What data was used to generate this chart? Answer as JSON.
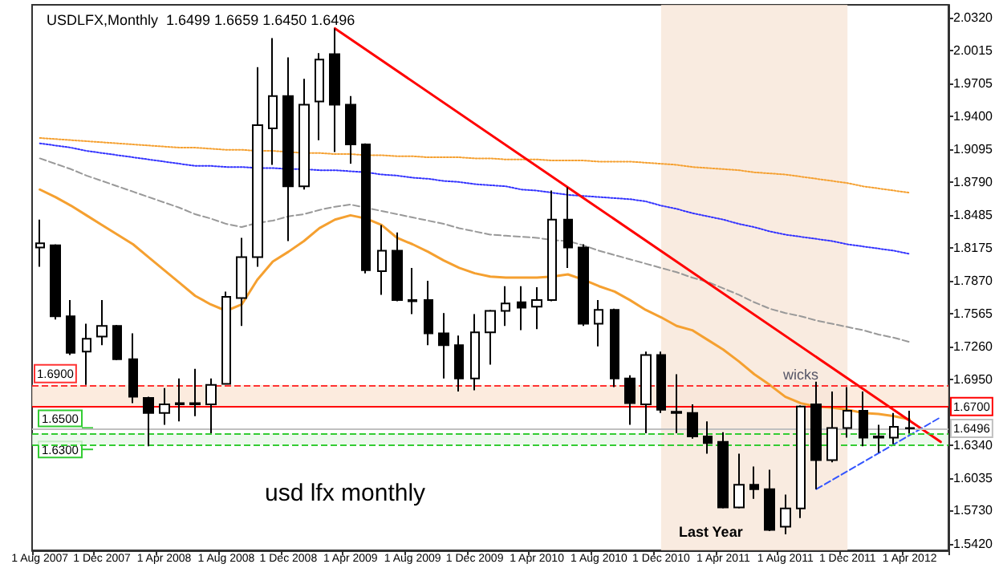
{
  "chart_data": {
    "type": "candlestick",
    "title": "USDLFX,Monthly  1.6499 1.6659 1.6450 1.6496",
    "categories": [
      "1 Aug 2007",
      null,
      null,
      null,
      "1 Dec 2007",
      null,
      null,
      null,
      "1 Apr 2008",
      null,
      null,
      null,
      "1 Aug 2008",
      null,
      null,
      null,
      "1 Dec 2008",
      null,
      null,
      null,
      "1 Apr 2009",
      null,
      null,
      null,
      "1 Aug 2009",
      null,
      null,
      null,
      "1 Dec 2009",
      null,
      null,
      null,
      "1 Apr 2010",
      null,
      null,
      null,
      "1 Aug 2010",
      null,
      null,
      null,
      "1 Dec 2010",
      null,
      null,
      null,
      "1 Apr 2011",
      null,
      null,
      null,
      "1 Aug 2011",
      null,
      null,
      null,
      "1 Dec 2011",
      null,
      null,
      null,
      "1 Apr 2012",
      null,
      null
    ],
    "series": [
      {
        "type": "candlestick",
        "color": "#000000",
        "ohlc": [
          [
            1.818,
            1.844,
            1.8,
            1.822
          ],
          [
            1.82,
            1.821,
            1.751,
            1.754
          ],
          [
            1.754,
            1.769,
            1.718,
            1.72
          ],
          [
            1.721,
            1.747,
            1.69,
            1.733
          ],
          [
            1.735,
            1.769,
            1.727,
            1.745
          ],
          [
            1.745,
            1.746,
            1.713,
            1.714
          ],
          [
            1.714,
            1.738,
            1.673,
            1.679
          ],
          [
            1.678,
            1.679,
            1.633,
            1.664
          ],
          [
            1.664,
            1.687,
            1.653,
            1.672
          ],
          [
            1.673,
            1.696,
            1.656,
            1.672
          ],
          [
            1.672,
            1.705,
            1.661,
            1.673
          ],
          [
            1.672,
            1.696,
            1.645,
            1.69
          ],
          [
            1.691,
            1.777,
            1.691,
            1.772
          ],
          [
            1.771,
            1.827,
            1.745,
            1.809
          ],
          [
            1.809,
            1.986,
            1.8,
            1.932
          ],
          [
            1.929,
            2.013,
            1.895,
            1.959
          ],
          [
            1.959,
            1.995,
            1.824,
            1.875
          ],
          [
            1.875,
            1.975,
            1.872,
            1.951
          ],
          [
            1.954,
            1.999,
            1.918,
            1.993
          ],
          [
            1.998,
            2.022,
            1.907,
            1.951
          ],
          [
            1.951,
            1.959,
            1.896,
            1.914
          ],
          [
            1.914,
            1.915,
            1.794,
            1.797
          ],
          [
            1.796,
            1.839,
            1.774,
            1.815
          ],
          [
            1.815,
            1.832,
            1.768,
            1.769
          ],
          [
            1.769,
            1.799,
            1.756,
            1.768
          ],
          [
            1.769,
            1.787,
            1.727,
            1.738
          ],
          [
            1.738,
            1.757,
            1.696,
            1.727
          ],
          [
            1.727,
            1.736,
            1.684,
            1.696
          ],
          [
            1.696,
            1.756,
            1.685,
            1.739
          ],
          [
            1.739,
            1.76,
            1.709,
            1.759
          ],
          [
            1.759,
            1.782,
            1.745,
            1.766
          ],
          [
            1.767,
            1.782,
            1.741,
            1.762
          ],
          [
            1.763,
            1.781,
            1.742,
            1.769
          ],
          [
            1.769,
            1.871,
            1.768,
            1.844
          ],
          [
            1.844,
            1.874,
            1.799,
            1.818
          ],
          [
            1.818,
            1.821,
            1.745,
            1.747
          ],
          [
            1.747,
            1.769,
            1.726,
            1.76
          ],
          [
            1.76,
            1.761,
            1.688,
            1.696
          ],
          [
            1.696,
            1.699,
            1.653,
            1.673
          ],
          [
            1.672,
            1.721,
            1.645,
            1.718
          ],
          [
            1.718,
            1.721,
            1.664,
            1.667
          ],
          [
            1.665,
            1.7,
            1.645,
            1.664
          ],
          [
            1.664,
            1.672,
            1.64,
            1.642
          ],
          [
            1.642,
            1.656,
            1.626,
            1.636
          ],
          [
            1.637,
            1.646,
            1.575,
            1.576
          ],
          [
            1.576,
            1.626,
            1.575,
            1.597
          ],
          [
            1.597,
            1.614,
            1.584,
            1.593
          ],
          [
            1.593,
            1.611,
            1.554,
            1.555
          ],
          [
            1.558,
            1.588,
            1.551,
            1.575
          ],
          [
            1.575,
            1.671,
            1.566,
            1.67
          ],
          [
            1.672,
            1.693,
            1.593,
            1.62
          ],
          [
            1.62,
            1.684,
            1.618,
            1.65
          ],
          [
            1.65,
            1.688,
            1.641,
            1.666
          ],
          [
            1.666,
            1.684,
            1.633,
            1.641
          ],
          [
            1.641,
            1.653,
            1.627,
            1.642
          ],
          [
            1.641,
            1.664,
            1.635,
            1.651
          ],
          [
            1.6499,
            1.6659,
            1.645,
            1.6496
          ],
          null,
          null
        ]
      },
      {
        "type": "line",
        "color": "#f5a030",
        "line_style": "solid",
        "values": [
          1.872,
          1.865,
          1.857,
          1.848,
          1.839,
          1.83,
          1.821,
          1.809,
          1.797,
          1.785,
          1.773,
          1.765,
          1.759,
          1.765,
          1.788,
          1.805,
          1.814,
          1.824,
          1.836,
          1.844,
          1.848,
          1.845,
          1.839,
          1.827,
          1.821,
          1.814,
          1.806,
          1.799,
          1.794,
          1.791,
          1.79,
          1.79,
          1.79,
          1.791,
          1.793,
          1.788,
          1.782,
          1.777,
          1.769,
          1.76,
          1.753,
          1.745,
          1.741,
          1.732,
          1.723,
          1.712,
          1.7,
          1.69,
          1.679,
          1.673,
          1.67,
          1.669,
          1.667,
          1.664,
          1.663,
          1.661,
          1.658,
          null,
          null
        ]
      },
      {
        "type": "line",
        "color": "#f5a030",
        "line_style": "dotted",
        "values": [
          1.92,
          1.919,
          1.918,
          1.917,
          1.916,
          1.915,
          1.914,
          1.913,
          1.912,
          1.911,
          1.911,
          1.91,
          1.909,
          1.909,
          1.908,
          1.908,
          1.907,
          1.906,
          1.906,
          1.905,
          1.905,
          1.904,
          1.904,
          1.903,
          1.903,
          1.902,
          1.902,
          1.902,
          1.901,
          1.901,
          1.9,
          1.9,
          1.9,
          1.899,
          1.899,
          1.899,
          1.898,
          1.898,
          1.898,
          1.897,
          1.896,
          1.895,
          1.893,
          1.892,
          1.891,
          1.89,
          1.888,
          1.887,
          1.886,
          1.884,
          1.882,
          1.88,
          1.878,
          1.875,
          1.873,
          1.871,
          1.869,
          null,
          null
        ]
      },
      {
        "type": "line",
        "color": "#3333ff",
        "line_style": "dotted",
        "values": [
          1.915,
          1.913,
          1.911,
          1.908,
          1.906,
          1.904,
          1.902,
          1.9,
          1.898,
          1.896,
          1.894,
          1.894,
          1.893,
          1.893,
          1.892,
          1.892,
          1.891,
          1.891,
          1.89,
          1.89,
          1.889,
          1.888,
          1.886,
          1.885,
          1.883,
          1.882,
          1.88,
          1.879,
          1.877,
          1.876,
          1.875,
          1.872,
          1.871,
          1.869,
          1.867,
          1.866,
          1.865,
          1.864,
          1.863,
          1.861,
          1.857,
          1.854,
          1.85,
          1.847,
          1.844,
          1.84,
          1.837,
          1.833,
          1.83,
          1.828,
          1.826,
          1.824,
          1.821,
          1.819,
          1.817,
          1.815,
          1.812,
          null,
          null
        ]
      },
      {
        "type": "line",
        "color": "#999999",
        "line_style": "dashed",
        "values": [
          1.901,
          1.896,
          1.891,
          1.885,
          1.88,
          1.875,
          1.87,
          1.865,
          1.86,
          1.855,
          1.849,
          1.845,
          1.84,
          1.837,
          1.841,
          1.843,
          1.847,
          1.849,
          1.853,
          1.856,
          1.858,
          1.855,
          1.852,
          1.849,
          1.846,
          1.843,
          1.84,
          1.836,
          1.833,
          1.83,
          1.829,
          1.828,
          1.827,
          1.825,
          1.824,
          1.82,
          1.815,
          1.811,
          1.807,
          1.803,
          1.799,
          1.795,
          1.79,
          1.786,
          1.78,
          1.774,
          1.767,
          1.761,
          1.757,
          1.754,
          1.75,
          1.747,
          1.744,
          1.741,
          1.737,
          1.734,
          1.73,
          null,
          null
        ]
      },
      {
        "type": "line",
        "color": "#ff0000",
        "line_style": "solid",
        "values": [
          null,
          null,
          null,
          null,
          null,
          null,
          null,
          null,
          null,
          null,
          null,
          null,
          null,
          null,
          null,
          null,
          null,
          null,
          null,
          2.022,
          null,
          null,
          null,
          null,
          null,
          null,
          null,
          null,
          null,
          null,
          null,
          null,
          null,
          null,
          null,
          null,
          null,
          null,
          null,
          null,
          null,
          null,
          null,
          null,
          null,
          null,
          null,
          null,
          null,
          null,
          null,
          null,
          null,
          null,
          null,
          null,
          null,
          null,
          1.637
        ]
      },
      {
        "type": "line",
        "color": "#3355ff",
        "line_style": "dashed",
        "values": [
          null,
          null,
          null,
          null,
          null,
          null,
          null,
          null,
          null,
          null,
          null,
          null,
          null,
          null,
          null,
          null,
          null,
          null,
          null,
          null,
          null,
          null,
          null,
          null,
          null,
          null,
          null,
          null,
          null,
          null,
          null,
          null,
          null,
          null,
          null,
          null,
          null,
          null,
          null,
          null,
          null,
          null,
          null,
          null,
          null,
          null,
          null,
          null,
          null,
          null,
          1.593,
          null,
          null,
          null,
          null,
          null,
          null,
          null,
          1.66
        ]
      }
    ],
    "ylim": [
      1.536,
      2.044
    ],
    "yticks": [
      {
        "value": 1.542,
        "label": "1.5420"
      },
      {
        "value": 1.573,
        "label": "1.5730"
      },
      1.6035,
      {
        "value": 1.634,
        "label": "1.6340"
      },
      {
        "value": 1.695,
        "label": "1.6950"
      },
      {
        "value": 1.726,
        "label": "1.7260"
      },
      1.7565,
      {
        "value": 1.787,
        "label": "1.7870"
      },
      1.8175,
      1.8485,
      {
        "value": 1.879,
        "label": "1.8790"
      },
      1.9095,
      {
        "value": 1.94,
        "label": "1.9400"
      },
      1.9705,
      2.0015,
      {
        "value": 2.032,
        "label": "2.0320"
      }
    ],
    "ref_lines": [
      {
        "axis": "y",
        "value": 1.69,
        "label": "1.6900",
        "color": "#ff3333",
        "line_style": "dashed"
      },
      {
        "axis": "y",
        "value": 1.67,
        "label": "1.6700",
        "color": "#ff0000",
        "line_style": "solid"
      },
      {
        "axis": "y",
        "value": 1.645,
        "color": "#33cc33",
        "line_style": "dashed"
      },
      {
        "axis": "y",
        "value": 1.634,
        "color": "#33cc33",
        "line_style": "dashed"
      },
      {
        "axis": "y",
        "value": 1.6496,
        "label": "1.6496",
        "color": "#c0c0c0",
        "line_style": "solid"
      }
    ],
    "bands": [
      {
        "axis": "y",
        "from": 1.67,
        "to": 1.69,
        "color": "#fbe6d6"
      },
      {
        "axis": "y",
        "from": 1.634,
        "to": 1.645,
        "color": "#e8f6e8"
      },
      {
        "axis": "x",
        "from": "1 Dec 2010",
        "to": "1 Dec 2011",
        "label": "Last Year",
        "color": "#f8e6d8"
      }
    ],
    "annotations": [
      "usd lfx monthly",
      "wicks",
      {
        "text": "1.6500",
        "y": 1.65
      },
      {
        "text": "1.6300",
        "y": 1.63
      }
    ],
    "marker": "none",
    "grid": false
  }
}
